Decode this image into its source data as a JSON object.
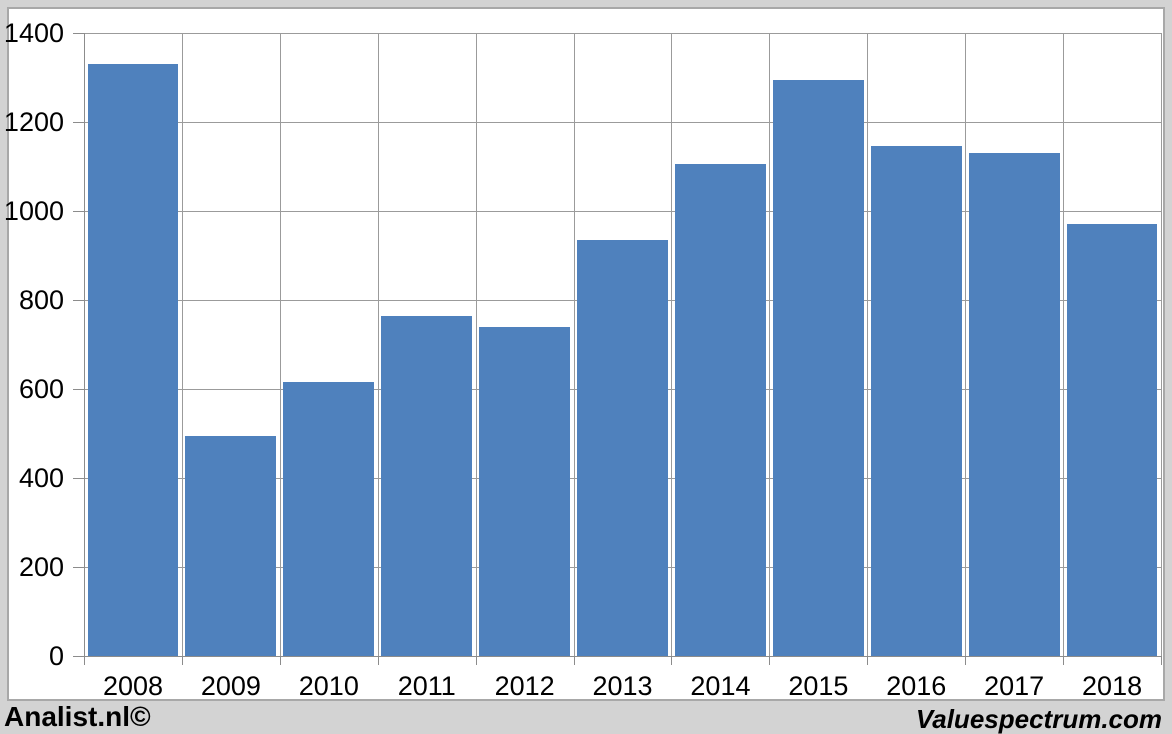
{
  "branding": {
    "left": "Analist.nl©",
    "right": "Valuespectrum.com"
  },
  "chart_data": {
    "type": "bar",
    "title": "",
    "xlabel": "",
    "ylabel": "",
    "categories": [
      "2008",
      "2009",
      "2010",
      "2011",
      "2012",
      "2013",
      "2014",
      "2015",
      "2016",
      "2017",
      "2018"
    ],
    "values": [
      1330,
      495,
      615,
      765,
      740,
      935,
      1105,
      1295,
      1145,
      1130,
      970
    ],
    "ylim": [
      0,
      1400
    ],
    "yticks": [
      0,
      200,
      400,
      600,
      800,
      1000,
      1200,
      1400
    ],
    "ytick_labels": [
      "0",
      "200",
      "400",
      "600",
      "800",
      "1000",
      "1200",
      "1400"
    ],
    "grid": "horizontal and vertical gridlines on, legend off",
    "bar_color": "#4f81bd"
  },
  "colors": {
    "background": "#d3d3d3",
    "plot_background": "#ffffff",
    "frame_border": "#a8a8a8",
    "gridline": "#9b9b9b",
    "axis": "#8c8c8c",
    "bar": "#4f81bd",
    "text": "#000000"
  }
}
